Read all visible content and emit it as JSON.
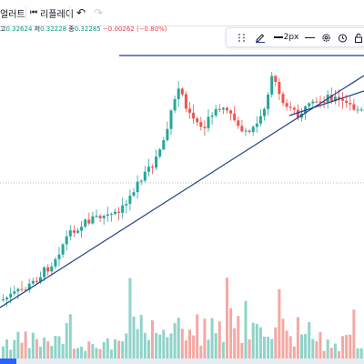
{
  "toolbar": {
    "alert_label": "얼러트",
    "replay_label": "리플레이",
    "undo_icon": "undo-icon",
    "redo_icon": "redo-icon"
  },
  "legend": {
    "high_label": "고",
    "high_value": "0.32624",
    "low_label": "저",
    "low_value": "0.32228",
    "close_label": "종",
    "close_value": "0.32285",
    "change_value": "−0.00262 (−0.80%)"
  },
  "drawing_toolbar": {
    "line_width_label": "2px",
    "line_color": "#1e3f8a",
    "icons": [
      "drag-handle-icon",
      "pencil-icon",
      "line-style-icon",
      "settings-icon",
      "alarm-icon",
      "lock-icon"
    ]
  },
  "colors": {
    "up": "#26a69a",
    "down": "#ef5350",
    "volume_up": "#8fd3c9",
    "volume_down": "#f4a8a4",
    "trendline": "#1e3f8a",
    "price_line": "#9aa0ad",
    "accent": "#2962ff"
  }
}
